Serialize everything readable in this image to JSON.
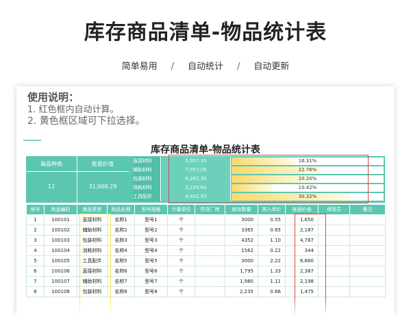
{
  "banner": {
    "title": "库存商品清单-物品统计表",
    "features": [
      "简单易用",
      "自动统计",
      "自动更新"
    ],
    "separator": "/"
  },
  "notes": {
    "title": "使用说明：",
    "lines": [
      "1. 红色框内自动计算。",
      "2. 黄色框区域可下拉选择。"
    ]
  },
  "sheet": {
    "title": "库存商品清单-物品统计表",
    "summary": {
      "category_count_label": "商品种类",
      "category_count": "12",
      "total_value_label": "账面价值",
      "total_value": "31,008.29",
      "categories": [
        {
          "name": "直接材料",
          "value": "5,057.35",
          "pct": "16.31%",
          "fraction": 0.1631
        },
        {
          "name": "辅助材料",
          "value": "7,057.05",
          "pct": "22.76%",
          "fraction": 0.2276
        },
        {
          "name": "包装材料",
          "value": "6,262.30",
          "pct": "20.20%",
          "fraction": 0.202
        },
        {
          "name": "消耗材料",
          "value": "3,229.64",
          "pct": "10.42%",
          "fraction": 0.1042
        },
        {
          "name": "工具配件",
          "value": "9,401.95",
          "pct": "30.32%",
          "fraction": 0.3032
        }
      ]
    },
    "columns": [
      "序号",
      "商品编码",
      "商品类型",
      "商品名称",
      "型号规格",
      "计量单位",
      "供货厂商",
      "库存数量",
      "购入单价",
      "账面价值",
      "保管员",
      "备注"
    ],
    "rows": [
      [
        "1",
        "100101",
        "直接材料",
        "名称1",
        "型号1",
        "个",
        "",
        "3000",
        "0.55",
        "1,650",
        "",
        ""
      ],
      [
        "2",
        "100102",
        "辅助材料",
        "名称2",
        "型号2",
        "个",
        "",
        "3365",
        "0.65",
        "2,187",
        "",
        ""
      ],
      [
        "3",
        "100103",
        "包装材料",
        "名称3",
        "型号3",
        "个",
        "",
        "4352",
        "1.10",
        "4,787",
        "",
        ""
      ],
      [
        "4",
        "100104",
        "消耗材料",
        "名称4",
        "型号4",
        "个",
        "",
        "1562",
        "0.22",
        "344",
        "",
        ""
      ],
      [
        "5",
        "100105",
        "工具配件",
        "名称5",
        "型号5",
        "个",
        "",
        "3000",
        "2.22",
        "6,660",
        "",
        ""
      ],
      [
        "6",
        "100106",
        "直接材料",
        "名称6",
        "型号6",
        "个",
        "",
        "1,795",
        "1.33",
        "2,387",
        "",
        ""
      ],
      [
        "7",
        "100107",
        "辅助材料",
        "名称7",
        "型号7",
        "个",
        "",
        "1,980",
        "1.11",
        "2,198",
        "",
        ""
      ],
      [
        "8",
        "100108",
        "包装材料",
        "名称8",
        "型号8",
        "个",
        "",
        "2,235",
        "0.66",
        "1,475",
        "",
        ""
      ]
    ],
    "colors": {
      "header_teal": "#5bc7b0",
      "red_frame": "#d9464b",
      "yellow_frame": "#f2e24a"
    }
  }
}
